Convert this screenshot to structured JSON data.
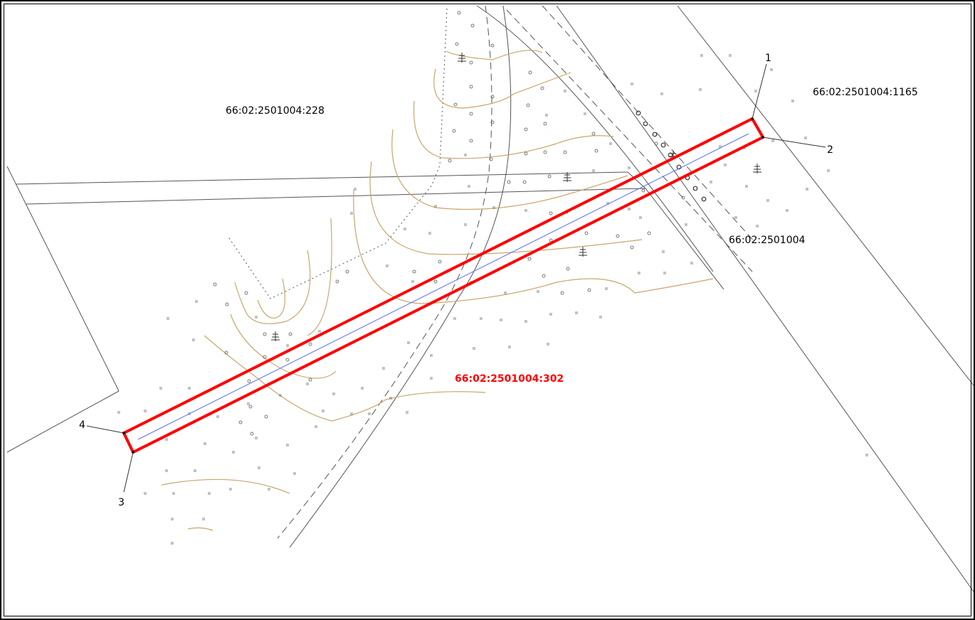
{
  "map": {
    "parcels": {
      "parcel_228": "66:02:2501004:228",
      "parcel_1165": "66:02:2501004:1165",
      "block": "66:02:2501004",
      "target": "66:02:2501004:302"
    },
    "points": [
      "1",
      "2",
      "3",
      "4"
    ],
    "colors": {
      "boundary": "#ff0000",
      "centerline": "#5b6bff",
      "contour": "#c9a66b",
      "lines": "#555555",
      "target_label": "#ff0000"
    }
  }
}
